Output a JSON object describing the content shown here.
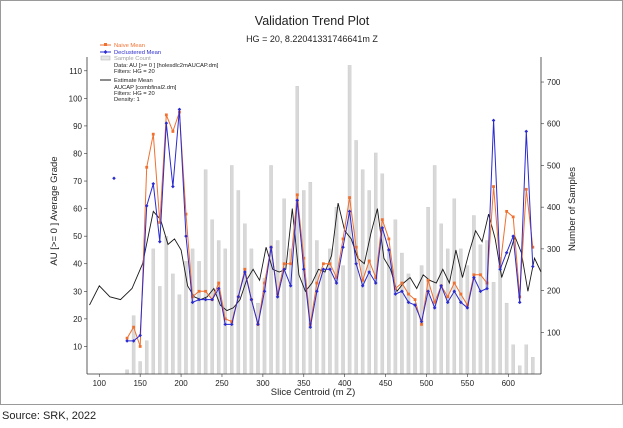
{
  "chart_data": {
    "type": "line",
    "title": "Validation Trend Plot",
    "subtitle": "HG = 20, 8.22041331746641m Z",
    "xlabel": "Slice Centroid (m Z)",
    "ylabel_left": "AU [>= 0 ] Average Grade",
    "ylabel_right": "Number of Samples",
    "xlim": [
      85,
      640
    ],
    "ylim_left": [
      0,
      115
    ],
    "ylim_right": [
      0,
      760
    ],
    "x_ticks": [
      100,
      150,
      200,
      250,
      300,
      350,
      400,
      450,
      500,
      550,
      600
    ],
    "y_left_ticks": [
      10,
      20,
      30,
      40,
      50,
      60,
      70,
      80,
      90,
      100,
      110
    ],
    "y_right_ticks": [
      100,
      200,
      300,
      400,
      500,
      600,
      700
    ],
    "grid": false,
    "legend_position": "top-left",
    "legend": {
      "entries": [
        "Naive Mean",
        "Declustered Mean",
        "Sample Count"
      ],
      "data_note": [
        "Data: AU [>= 0 ] [holesdlc2mAUCAP.dm]",
        "Filters: HG = 20"
      ],
      "estimate_entry": "Estimate Mean",
      "estimate_note": [
        "AUCAP [combfinal2.dm]",
        "Filters: HG = 20",
        "Density: 1"
      ]
    },
    "colors": {
      "naive": "#f07030",
      "declustered": "#2a2ad0",
      "estimate": "#1a1a1a",
      "count_bar": "#d8d8d8"
    },
    "series": [
      {
        "name": "Naive Mean",
        "x": [
          134,
          142,
          150,
          158,
          166,
          174,
          182,
          190,
          198,
          206,
          214,
          222,
          230,
          238,
          246,
          254,
          262,
          270,
          278,
          286,
          294,
          302,
          310,
          318,
          326,
          334,
          342,
          350,
          358,
          366,
          374,
          382,
          390,
          398,
          406,
          414,
          422,
          430,
          438,
          446,
          454,
          462,
          470,
          478,
          486,
          494,
          502,
          510,
          518,
          526,
          534,
          542,
          550,
          558,
          566,
          574,
          582,
          590,
          598,
          606,
          614,
          622,
          630
        ],
        "values": [
          13,
          17,
          10,
          75,
          87,
          55,
          94,
          88,
          95,
          58,
          28,
          30,
          30,
          27,
          33,
          20,
          19,
          28,
          38,
          27,
          18,
          33,
          46,
          29,
          40,
          40,
          65,
          42,
          18,
          33,
          40,
          40,
          35,
          49,
          64,
          46,
          34,
          41,
          35,
          56,
          49,
          31,
          33,
          29,
          27,
          18,
          34,
          26,
          32,
          28,
          33,
          29,
          25,
          36,
          36,
          33,
          68,
          39,
          59,
          57,
          28,
          67,
          46
        ]
      },
      {
        "name": "Declustered Mean",
        "x": [
          134,
          142,
          150,
          158,
          166,
          174,
          182,
          190,
          198,
          206,
          214,
          222,
          230,
          238,
          246,
          254,
          262,
          270,
          278,
          286,
          294,
          302,
          310,
          318,
          326,
          334,
          342,
          350,
          358,
          366,
          374,
          382,
          390,
          398,
          406,
          414,
          422,
          430,
          438,
          446,
          454,
          462,
          470,
          478,
          486,
          494,
          502,
          510,
          518,
          526,
          534,
          542,
          550,
          558,
          566,
          574,
          582,
          590,
          598,
          606,
          614,
          622,
          630
        ],
        "values": [
          12,
          12,
          14,
          61,
          69,
          48,
          91,
          68,
          96,
          50,
          26,
          27,
          27,
          27,
          31,
          18,
          18,
          28,
          37,
          27,
          18,
          30,
          46,
          28,
          38,
          32,
          63,
          38,
          17,
          30,
          38,
          38,
          33,
          46,
          59,
          40,
          32,
          37,
          33,
          53,
          45,
          29,
          30,
          26,
          25,
          19,
          30,
          24,
          32,
          26,
          30,
          26,
          24,
          35,
          30,
          31,
          92,
          38,
          44,
          50,
          26,
          88,
          39
        ]
      },
      {
        "name": "Estimate Mean",
        "x": [
          88,
          100,
          113,
          126,
          140,
          153,
          166,
          175,
          184,
          192,
          200,
          208,
          216,
          224,
          232,
          240,
          248,
          256,
          264,
          272,
          280,
          288,
          296,
          304,
          312,
          320,
          328,
          336,
          344,
          352,
          360,
          368,
          376,
          384,
          392,
          400,
          408,
          416,
          424,
          432,
          440,
          448,
          456,
          464,
          472,
          480,
          488,
          496,
          504,
          512,
          520,
          528,
          536,
          544,
          552,
          560,
          568,
          576,
          584,
          592,
          600,
          608,
          616,
          624,
          632,
          640
        ],
        "values": [
          25,
          32,
          28,
          27,
          31,
          40,
          59,
          56,
          47,
          49,
          45,
          32,
          28,
          27,
          28,
          31,
          25,
          23,
          24,
          27,
          34,
          38,
          34,
          46,
          38,
          37,
          38,
          60,
          36,
          30,
          33,
          38,
          37,
          43,
          62,
          52,
          49,
          42,
          40,
          51,
          60,
          42,
          38,
          30,
          33,
          35,
          31,
          36,
          34,
          33,
          38,
          33,
          45,
          35,
          44,
          52,
          48,
          58,
          49,
          35,
          42,
          50,
          44,
          30,
          42,
          37
        ]
      }
    ],
    "sample_count": {
      "name": "Sample Count",
      "x": [
        126,
        134,
        142,
        150,
        158,
        166,
        174,
        182,
        190,
        198,
        206,
        214,
        222,
        230,
        238,
        246,
        254,
        262,
        270,
        278,
        286,
        294,
        302,
        310,
        318,
        326,
        334,
        342,
        350,
        358,
        366,
        374,
        382,
        390,
        398,
        406,
        414,
        422,
        430,
        438,
        446,
        454,
        462,
        470,
        478,
        486,
        494,
        502,
        510,
        518,
        526,
        534,
        542,
        550,
        558,
        566,
        574,
        582,
        590,
        598,
        606,
        614,
        622,
        630
      ],
      "values": [
        0,
        10,
        140,
        30,
        80,
        300,
        210,
        330,
        240,
        190,
        270,
        300,
        270,
        490,
        370,
        320,
        300,
        500,
        440,
        360,
        300,
        170,
        230,
        500,
        320,
        420,
        300,
        690,
        440,
        460,
        320,
        250,
        300,
        400,
        260,
        740,
        560,
        490,
        440,
        530,
        480,
        300,
        370,
        290,
        240,
        170,
        260,
        400,
        500,
        360,
        300,
        420,
        300,
        260,
        380,
        310,
        320,
        220,
        280,
        170,
        70,
        20,
        70,
        40
      ]
    }
  },
  "caption": "Source: SRK, 2022"
}
